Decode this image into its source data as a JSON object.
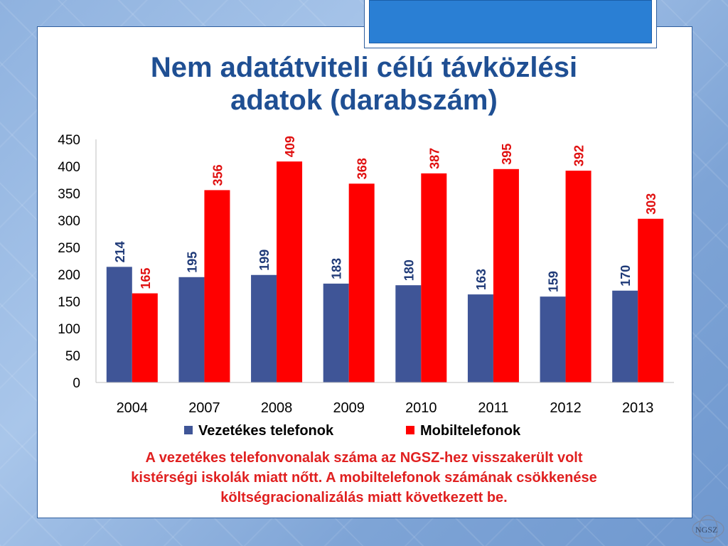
{
  "slide": {
    "title_line1": "Nem adatátviteli célú távközlési",
    "title_line2": "adatok (darabszám)",
    "caption_line1": "A vezetékes telefonvonalak száma az NGSZ-hez visszakerült volt",
    "caption_line2": "kistérségi iskolák miatt nőtt. A mobiltelefonok számának csökkenése",
    "caption_line3": "költségracionalizálás miatt következett be.",
    "logo_text": "NGSZ"
  },
  "colors": {
    "series1": "#3f5597",
    "series2": "#ff0000",
    "series1_label": "#1f3a78",
    "series2_label": "#e01010",
    "title": "#1f4f93"
  },
  "chart_data": {
    "type": "bar",
    "categories": [
      "2004",
      "2007",
      "2008",
      "2009",
      "2010",
      "2011",
      "2012",
      "2013"
    ],
    "series": [
      {
        "name": "Vezetékes telefonok",
        "values": [
          214,
          195,
          199,
          183,
          180,
          163,
          159,
          170
        ]
      },
      {
        "name": "Mobiltelefonok",
        "values": [
          165,
          356,
          409,
          368,
          387,
          395,
          392,
          303
        ]
      }
    ],
    "yticks": [
      "0",
      "50",
      "100",
      "150",
      "200",
      "250",
      "300",
      "350",
      "400",
      "450"
    ],
    "ylim": [
      0,
      450
    ],
    "grid": false,
    "legend": "bottom",
    "data_labels": true
  }
}
